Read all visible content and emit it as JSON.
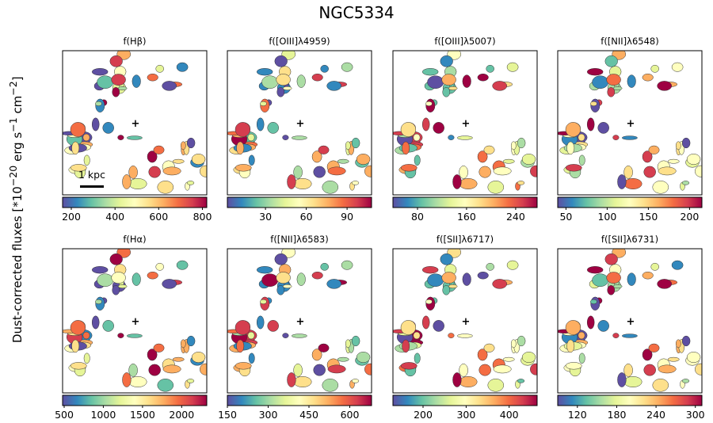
{
  "chart_data": {
    "type": "heatmap",
    "title": "NGC5334",
    "ylabel": "Dust-corrected fluxes [*10^-20 erg s^-1 cm^-2]",
    "ylabel_parts": [
      "Dust-corrected fluxes [*10",
      "−20",
      " erg s",
      "−1",
      " cm",
      "−2",
      "]"
    ],
    "colormap": "Spectral_r",
    "colormap_stops": [
      "#5e4fa2",
      "#3288bd",
      "#66c2a5",
      "#abdda4",
      "#e6f598",
      "#ffffbf",
      "#fee08b",
      "#fdae61",
      "#f46d43",
      "#d53e4f",
      "#9e0142"
    ],
    "center_marker": "+",
    "scalebar": "1 kpc",
    "panels": [
      {
        "title": "f(Hβ)",
        "vmin": 160,
        "vmax": 820,
        "ticks": [
          200,
          400,
          600,
          800
        ],
        "tick_labels": [
          "200",
          "400",
          "600",
          "800"
        ]
      },
      {
        "title": "f([OIII]λ4959)",
        "vmin": 2,
        "vmax": 108,
        "ticks": [
          30,
          60,
          90
        ],
        "tick_labels": [
          "30",
          "60",
          "90"
        ]
      },
      {
        "title": "f([OIII]λ5007)",
        "vmin": 40,
        "vmax": 275,
        "ticks": [
          80,
          160,
          240
        ],
        "tick_labels": [
          "80",
          "160",
          "240"
        ]
      },
      {
        "title": "f([NII]λ6548)",
        "vmin": 40,
        "vmax": 215,
        "ticks": [
          50,
          100,
          150,
          200
        ],
        "tick_labels": [
          "50",
          "100",
          "150",
          "200"
        ]
      },
      {
        "title": "f(Hα)",
        "vmin": 480,
        "vmax": 2320,
        "ticks": [
          500,
          1000,
          1500,
          2000
        ],
        "tick_labels": [
          "500",
          "1000",
          "1500",
          "2000"
        ]
      },
      {
        "title": "f([NII]λ6583)",
        "vmin": 150,
        "vmax": 680,
        "ticks": [
          150,
          300,
          450,
          600
        ],
        "tick_labels": [
          "150",
          "300",
          "450",
          "600"
        ]
      },
      {
        "title": "f([SII]λ6717)",
        "vmin": 130,
        "vmax": 465,
        "ticks": [
          200,
          300,
          400
        ],
        "tick_labels": [
          "200",
          "300",
          "400"
        ]
      },
      {
        "title": "f([SII]λ6731)",
        "vmin": 90,
        "vmax": 310,
        "ticks": [
          120,
          180,
          240,
          300
        ],
        "tick_labels": [
          "120",
          "180",
          "240",
          "300"
        ]
      }
    ]
  }
}
